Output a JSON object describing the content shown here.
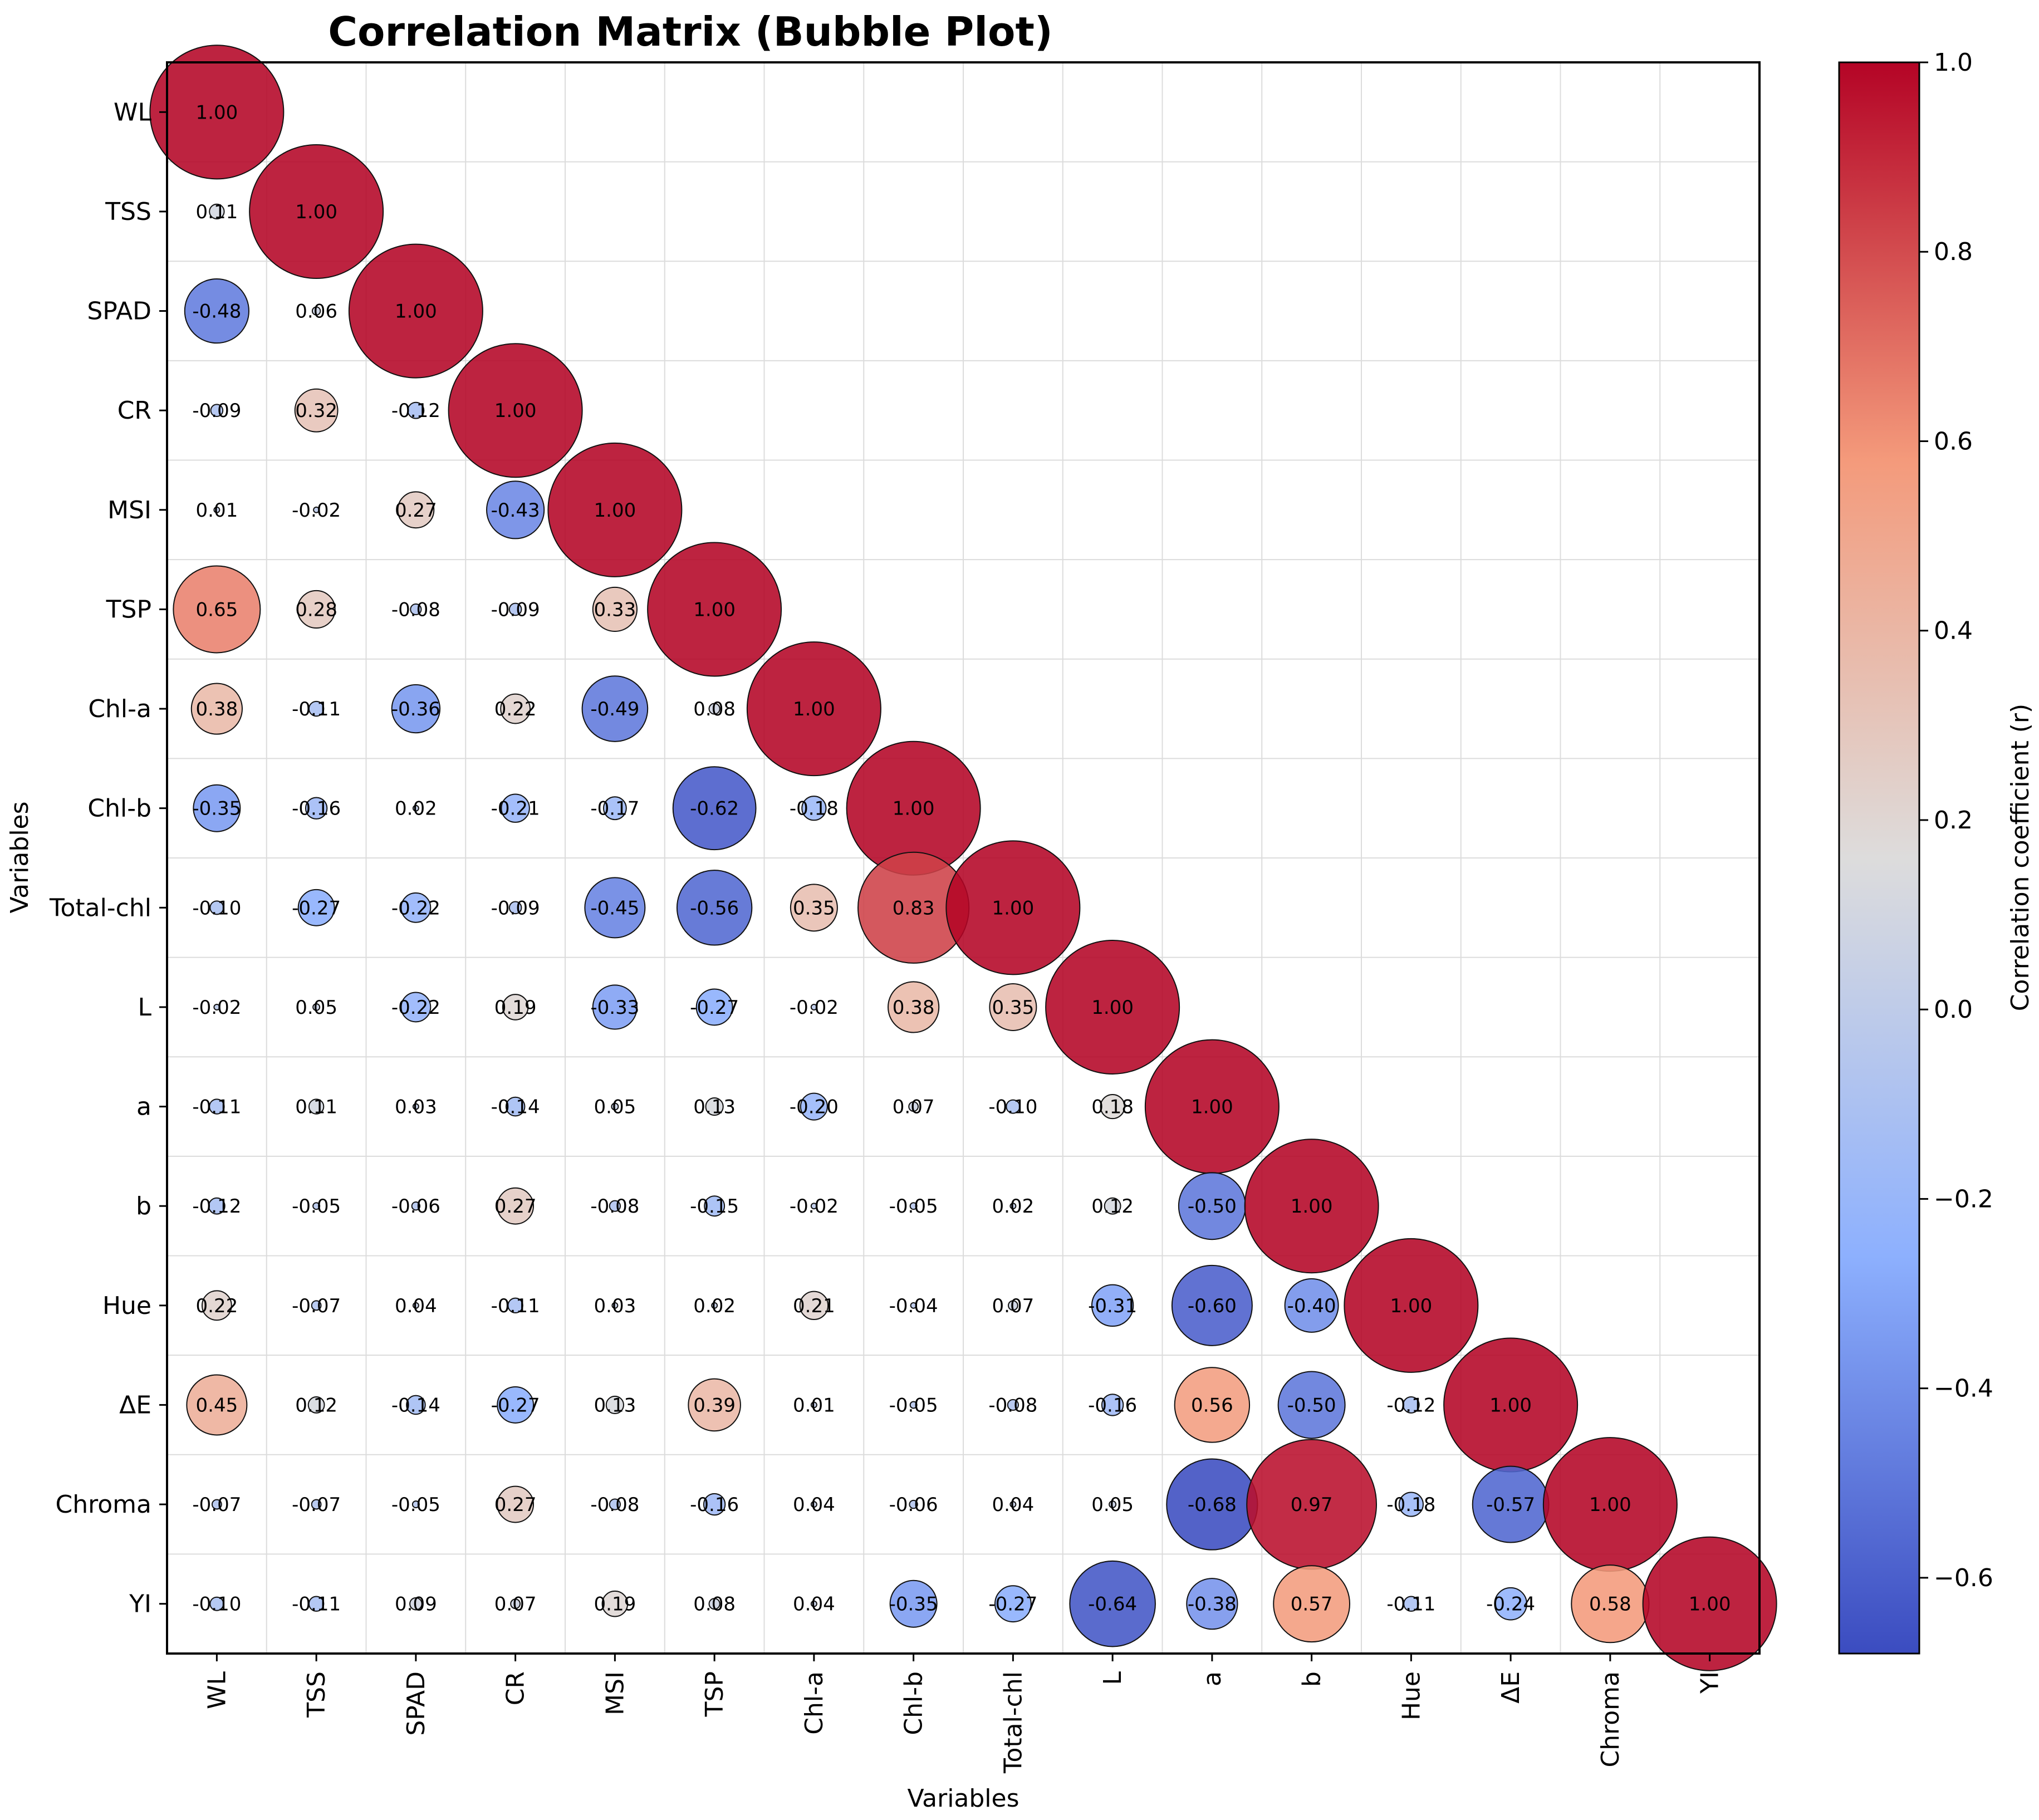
{
  "chart_data": {
    "type": "bubble-correlation-matrix",
    "title": "Correlation Matrix (Bubble Plot)",
    "xlabel": "Variables",
    "ylabel": "Variables",
    "variables": [
      "WL",
      "TSS",
      "SPAD",
      "CR",
      "MSI",
      "TSP",
      "Chl-a",
      "Chl-b",
      "Total-chl",
      "L",
      "a",
      "b",
      "Hue",
      "ΔE",
      "Chroma",
      "YI"
    ],
    "matrix_lower": [
      [
        1.0
      ],
      [
        0.11,
        1.0
      ],
      [
        -0.48,
        0.06,
        1.0
      ],
      [
        -0.09,
        0.32,
        -0.12,
        1.0
      ],
      [
        0.01,
        -0.02,
        0.27,
        -0.43,
        1.0
      ],
      [
        0.65,
        0.28,
        -0.08,
        -0.09,
        0.33,
        1.0
      ],
      [
        0.38,
        -0.11,
        -0.36,
        0.22,
        -0.49,
        0.08,
        1.0
      ],
      [
        -0.35,
        -0.16,
        0.02,
        -0.21,
        -0.17,
        -0.62,
        -0.18,
        1.0
      ],
      [
        -0.1,
        -0.27,
        -0.22,
        -0.09,
        -0.45,
        -0.56,
        0.35,
        0.83,
        1.0
      ],
      [
        -0.02,
        0.05,
        -0.22,
        0.19,
        -0.33,
        -0.27,
        -0.02,
        0.38,
        0.35,
        1.0
      ],
      [
        -0.11,
        0.11,
        0.03,
        -0.14,
        0.05,
        0.13,
        -0.2,
        0.07,
        -0.1,
        0.18,
        1.0
      ],
      [
        -0.12,
        -0.05,
        -0.06,
        0.27,
        -0.08,
        -0.15,
        -0.02,
        -0.05,
        0.02,
        0.12,
        -0.5,
        1.0
      ],
      [
        0.22,
        -0.07,
        0.04,
        -0.11,
        0.03,
        0.02,
        0.21,
        -0.04,
        0.07,
        -0.31,
        -0.6,
        -0.4,
        1.0
      ],
      [
        0.45,
        0.12,
        -0.14,
        -0.27,
        0.13,
        0.39,
        0.01,
        -0.05,
        -0.08,
        -0.16,
        0.56,
        -0.5,
        -0.12,
        1.0
      ],
      [
        -0.07,
        -0.07,
        -0.05,
        0.27,
        -0.08,
        -0.16,
        0.04,
        -0.06,
        0.04,
        0.05,
        -0.68,
        0.97,
        -0.18,
        -0.57,
        1.0
      ],
      [
        -0.1,
        -0.11,
        0.09,
        0.07,
        0.19,
        0.08,
        0.04,
        -0.35,
        -0.27,
        -0.64,
        -0.38,
        0.57,
        -0.11,
        -0.24,
        0.58,
        1.0
      ]
    ],
    "colorbar": {
      "label": "Correlation coefficient (r)",
      "range": [
        -0.68,
        1.0
      ],
      "ticks": [
        1.0,
        0.8,
        0.6,
        0.4,
        0.2,
        0.0,
        -0.2,
        -0.4,
        -0.6
      ],
      "tick_labels": [
        "1.0",
        "0.8",
        "0.6",
        "0.4",
        "0.2",
        "0.0",
        "−0.2",
        "−0.4",
        "−0.6"
      ],
      "colormap": "coolwarm",
      "stops": [
        {
          "t": 0.0,
          "color": "#3b4cc0"
        },
        {
          "t": 0.25,
          "color": "#8db0fe"
        },
        {
          "t": 0.5,
          "color": "#dddcdc"
        },
        {
          "t": 0.75,
          "color": "#f49a7b"
        },
        {
          "t": 1.0,
          "color": "#b40426"
        }
      ]
    }
  }
}
